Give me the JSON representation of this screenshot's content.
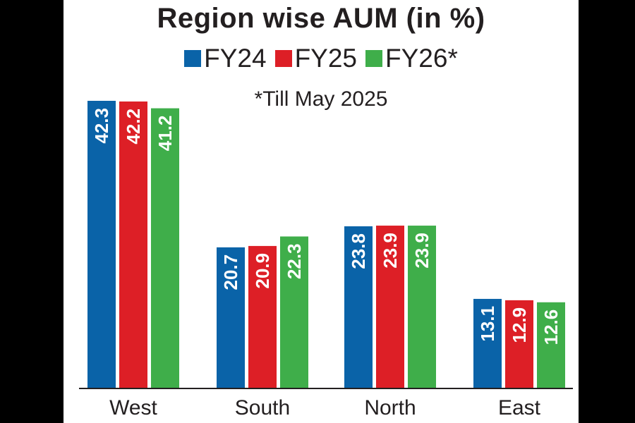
{
  "title": "Region wise AUM (in %)",
  "subtitle": "*Till May 2025",
  "legend": [
    {
      "label": "FY24",
      "color": "#0a63a8"
    },
    {
      "label": "FY25",
      "color": "#dd1f26"
    },
    {
      "label": "FY26*",
      "color": "#3fae4a"
    }
  ],
  "chart_data": {
    "type": "bar",
    "title": "Region wise AUM (in %)",
    "subtitle": "*Till May 2025",
    "categories": [
      "West",
      "South",
      "North",
      "East"
    ],
    "series": [
      {
        "name": "FY24",
        "color": "#0a63a8",
        "values": [
          42.3,
          20.7,
          23.8,
          13.1
        ]
      },
      {
        "name": "FY25",
        "color": "#dd1f26",
        "values": [
          42.2,
          20.9,
          23.9,
          12.9
        ]
      },
      {
        "name": "FY26*",
        "color": "#3fae4a",
        "values": [
          41.2,
          22.3,
          23.9,
          12.6
        ]
      }
    ],
    "ylim": [
      0,
      42.3
    ],
    "grid": false,
    "legend_position": "top",
    "data_labels": "rotated",
    "xlabel": "",
    "ylabel": ""
  }
}
